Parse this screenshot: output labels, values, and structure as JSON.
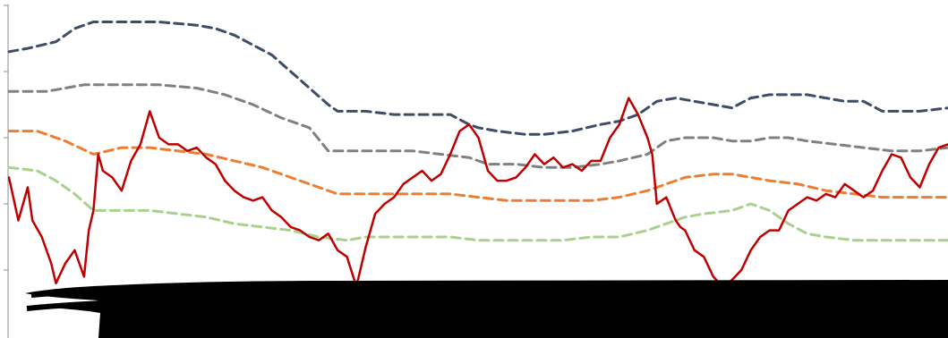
{
  "chart_data": {
    "type": "line",
    "title": "",
    "xlabel": "",
    "ylabel": "",
    "xlim": [
      0,
      100
    ],
    "ylim": [
      0,
      100
    ],
    "grid": false,
    "legend": "none",
    "series": [
      {
        "color": "#3f4c66",
        "dash": "dashed",
        "x": [
          0,
          2,
          5,
          7,
          9,
          12,
          16,
          20,
          22,
          24,
          26,
          28,
          30,
          32,
          34,
          35,
          36,
          38,
          41,
          44,
          47,
          49,
          50,
          52,
          55,
          57,
          60,
          63,
          65,
          67,
          69,
          71,
          73,
          75,
          77,
          79,
          81,
          83,
          85,
          87,
          89,
          91,
          93,
          95,
          97,
          100
        ],
        "y": [
          86,
          87,
          89,
          93,
          95,
          95,
          95,
          94,
          93,
          91,
          88,
          85,
          80,
          75,
          70,
          68,
          68,
          68,
          67,
          67,
          67,
          64,
          63,
          62,
          61,
          61,
          62,
          64,
          65,
          67,
          71,
          72,
          71,
          70,
          69,
          72,
          73,
          73,
          73,
          72,
          71,
          71,
          68,
          68,
          68,
          69
        ]
      },
      {
        "color": "#808080",
        "dash": "dashed",
        "x": [
          0,
          4,
          8,
          12,
          16,
          20,
          23,
          26,
          29,
          32,
          34,
          35,
          37,
          40,
          43,
          46,
          49,
          51,
          54,
          57,
          60,
          63,
          65,
          68,
          70,
          72,
          75,
          77,
          79,
          81,
          83,
          85,
          88,
          91,
          94,
          97,
          100
        ],
        "y": [
          74,
          74,
          76,
          76,
          76,
          75,
          73,
          70,
          66,
          63,
          56,
          56,
          56,
          56,
          56,
          55,
          54,
          52,
          52,
          51,
          51,
          52,
          53,
          55,
          59,
          60,
          60,
          59,
          59,
          60,
          60,
          59,
          58,
          57,
          56,
          56,
          57
        ]
      },
      {
        "color": "#ed7d31",
        "dash": "dashed",
        "x": [
          0,
          3,
          6,
          9,
          12,
          15,
          18,
          21,
          24,
          27,
          30,
          33,
          35,
          38,
          41,
          44,
          47,
          50,
          53,
          56,
          59,
          62,
          65,
          68,
          70,
          72,
          75,
          77,
          79,
          81,
          84,
          87,
          90,
          93,
          96,
          100
        ],
        "y": [
          62,
          62,
          59,
          55,
          57,
          57,
          56,
          55,
          53,
          51,
          48,
          45,
          43,
          43,
          43,
          43,
          43,
          42,
          41,
          41,
          41,
          41,
          42,
          44,
          46,
          48,
          49,
          49,
          48,
          47,
          46,
          44,
          43,
          42,
          42,
          42
        ]
      },
      {
        "color": "#a9d18e",
        "dash": "dashed",
        "x": [
          0,
          3,
          5,
          7,
          9,
          12,
          15,
          18,
          21,
          24,
          27,
          30,
          33,
          36,
          38,
          41,
          44,
          47,
          50,
          53,
          56,
          59,
          62,
          65,
          68,
          70,
          72,
          74,
          77,
          79,
          81,
          83,
          85,
          87,
          90,
          93,
          96,
          100
        ],
        "y": [
          51,
          50,
          47,
          43,
          38,
          38,
          38,
          37,
          36,
          34,
          33,
          32,
          30,
          29,
          30,
          30,
          30,
          30,
          29,
          29,
          29,
          29,
          30,
          30,
          32,
          34,
          36,
          37,
          38,
          40,
          38,
          34,
          31,
          30,
          29,
          29,
          29,
          29
        ]
      },
      {
        "color": "#c00000",
        "dash": "solid",
        "x": [
          0,
          1,
          2,
          2.5,
          3.5,
          4.5,
          5,
          6,
          7,
          8,
          8.5,
          9,
          9.5,
          10,
          11,
          12,
          13,
          14,
          15,
          16,
          17,
          18,
          19,
          20,
          21,
          22,
          23,
          24,
          25,
          26,
          27,
          28,
          29,
          30,
          31,
          32,
          33,
          34,
          35,
          36,
          37,
          38,
          39,
          40,
          41,
          42,
          43,
          44,
          45,
          46,
          47,
          48,
          49,
          50,
          51,
          52,
          53,
          54,
          55,
          56,
          57,
          58,
          59,
          60,
          61,
          62,
          63,
          64,
          65,
          66,
          67,
          68,
          68.5,
          69,
          70,
          71,
          71.5,
          72,
          73,
          74,
          75,
          76,
          77,
          78,
          79,
          80,
          81,
          82,
          83,
          84,
          85,
          86,
          87,
          88,
          89,
          90,
          91,
          92,
          93,
          94,
          95,
          96,
          97,
          98,
          99,
          100
        ],
        "y": [
          48,
          35,
          45,
          35,
          30,
          22,
          16,
          22,
          26,
          18,
          32,
          38,
          55,
          50,
          48,
          44,
          53,
          58,
          68,
          60,
          58,
          58,
          56,
          57,
          54,
          52,
          47,
          44,
          42,
          41,
          42,
          38,
          36,
          33,
          32,
          30,
          29,
          31,
          26,
          24,
          15,
          27,
          37,
          40,
          42,
          46,
          48,
          50,
          47,
          49,
          55,
          62,
          64,
          60,
          50,
          47,
          47,
          48,
          51,
          55,
          52,
          54,
          51,
          52,
          50,
          53,
          53,
          60,
          64,
          72,
          67,
          60,
          55,
          40,
          42,
          35,
          33,
          32,
          26,
          24,
          18,
          15,
          17,
          20,
          26,
          30,
          32,
          32,
          38,
          40,
          42,
          41,
          43,
          42,
          46,
          44,
          42,
          44,
          50,
          55,
          54,
          48,
          45,
          52,
          57,
          58
        ]
      }
    ]
  }
}
